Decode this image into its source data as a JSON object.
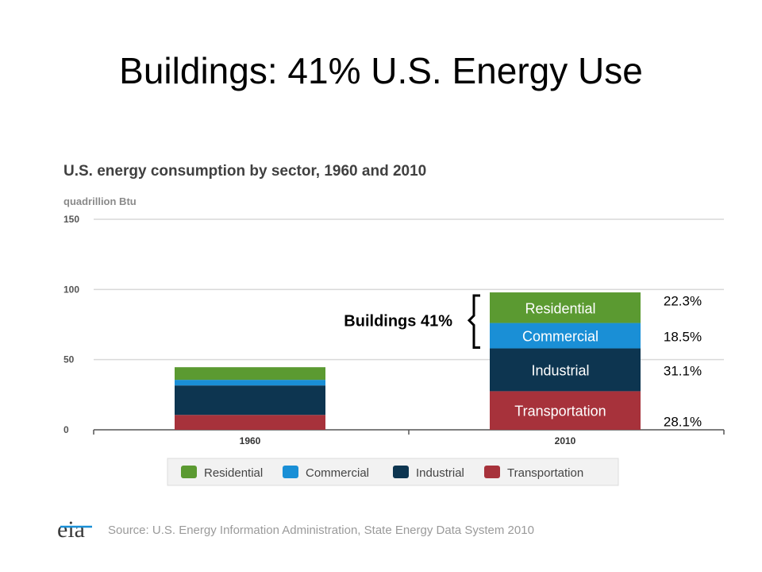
{
  "slide_title": "Buildings: 41% U.S. Energy Use",
  "colors": {
    "residential": "#5b9a31",
    "commercial": "#1a8fd6",
    "industrial": "#0d3550",
    "transportation": "#a7323b",
    "grid": "#d9d9d9"
  },
  "chart_data": {
    "type": "bar",
    "stacked": true,
    "title": "U.S. energy consumption by sector, 1960 and 2010",
    "unit_label": "quadrillion Btu",
    "categories": [
      "1960",
      "2010"
    ],
    "ylim": [
      0,
      150
    ],
    "yticks": [
      "0",
      "50",
      "100",
      "150"
    ],
    "grid": true,
    "legend_position": "bottom",
    "series": [
      {
        "name": "Transportation",
        "color_key": "transportation",
        "values": [
          10.6,
          27.5
        ]
      },
      {
        "name": "Industrial",
        "color_key": "industrial",
        "values": [
          21.0,
          30.5
        ]
      },
      {
        "name": "Commercial",
        "color_key": "commercial",
        "values": [
          4.0,
          18.1
        ]
      },
      {
        "name": "Residential",
        "color_key": "residential",
        "values": [
          9.0,
          21.8
        ]
      }
    ],
    "segment_labels_2010": [
      "Transportation",
      "Industrial",
      "Commercial",
      "Residential"
    ],
    "percent_labels_2010": [
      "28.1%",
      "31.1%",
      "18.5%",
      "22.3%"
    ],
    "bracket_label": "Buildings 41%",
    "legend": [
      "Residential",
      "Commercial",
      "Industrial",
      "Transportation"
    ]
  },
  "source": {
    "logo": "eia",
    "text": "Source: U.S. Energy Information Administration, State Energy Data System 2010"
  }
}
